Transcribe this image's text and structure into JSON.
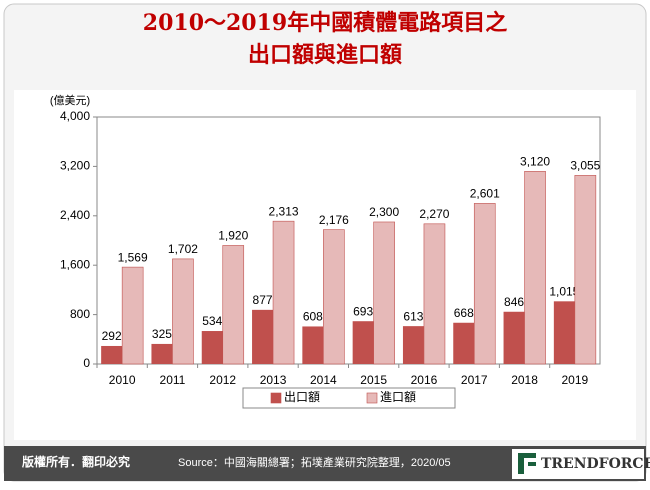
{
  "chart_data": {
    "type": "bar",
    "title": [
      "2010～2019年中國積體電路項目之",
      "出口額與進口額"
    ],
    "unit_label": "(億美元)",
    "categories": [
      "2010",
      "2011",
      "2012",
      "2013",
      "2014",
      "2015",
      "2016",
      "2017",
      "2018",
      "2019"
    ],
    "series": [
      {
        "name": "出口額",
        "color": "#c0504d",
        "values": [
          292,
          325,
          534,
          877,
          608,
          693,
          613,
          668,
          846,
          1015
        ],
        "value_labels": [
          "292",
          "325",
          "534",
          "877",
          "608",
          "693",
          "613",
          "668",
          "846",
          "1,015"
        ]
      },
      {
        "name": "進口額",
        "color": "#e6b9b8",
        "values": [
          1569,
          1702,
          1920,
          2313,
          2176,
          2300,
          2270,
          2601,
          3120,
          3055
        ],
        "value_labels": [
          "1,569",
          "1,702",
          "1,920",
          "2,313",
          "2,176",
          "2,300",
          "2,270",
          "2,601",
          "3,120",
          "3,055"
        ]
      }
    ],
    "ylim": [
      0,
      4000
    ],
    "yticks": [
      0,
      800,
      {
        "value": 1600,
        "label": "1,600"
      },
      {
        "value": 2400,
        "label": "2,400"
      },
      {
        "value": 3200,
        "label": "3,200"
      },
      {
        "value": 4000,
        "label": "4,000"
      }
    ],
    "legend": "bottom"
  },
  "footer": {
    "copyright": "版權所有．翻印必究",
    "source": "Source：中國海關總署；拓墣產業研究院整理，2020/05",
    "logo": "TRENDFORCE"
  }
}
